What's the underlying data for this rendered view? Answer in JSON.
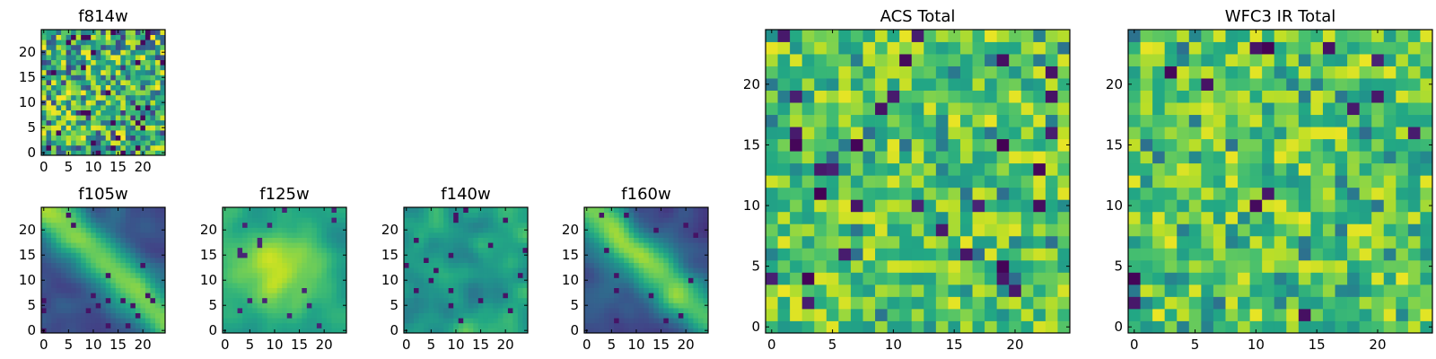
{
  "chart_data": [
    {
      "id": "f814w",
      "type": "heatmap",
      "title": "f814w",
      "grid_size": 25,
      "xticks": [
        0,
        5,
        10,
        15,
        20
      ],
      "yticks": [
        0,
        5,
        10,
        15,
        20
      ],
      "xlim": [
        -0.5,
        24.5
      ],
      "ylim": [
        -0.5,
        24.5
      ],
      "colormap": "viridis",
      "pattern": "noise",
      "seed": 11
    },
    {
      "id": "f105w",
      "type": "heatmap",
      "title": "f105w",
      "grid_size": 25,
      "xticks": [
        0,
        5,
        10,
        15,
        20
      ],
      "yticks": [
        0,
        5,
        10,
        15,
        20
      ],
      "xlim": [
        -0.5,
        24.5
      ],
      "ylim": [
        -0.5,
        24.5
      ],
      "colormap": "viridis",
      "pattern": "diagonal-band",
      "seed": 23
    },
    {
      "id": "f125w",
      "type": "heatmap",
      "title": "f125w",
      "grid_size": 25,
      "xticks": [
        0,
        5,
        10,
        15,
        20
      ],
      "yticks": [
        0,
        5,
        10,
        15,
        20
      ],
      "xlim": [
        -0.5,
        24.5
      ],
      "ylim": [
        -0.5,
        24.5
      ],
      "colormap": "viridis",
      "pattern": "bright-center",
      "seed": 37
    },
    {
      "id": "f140w",
      "type": "heatmap",
      "title": "f140w",
      "grid_size": 25,
      "xticks": [
        0,
        5,
        10,
        15,
        20
      ],
      "yticks": [
        0,
        5,
        10,
        15,
        20
      ],
      "xlim": [
        -0.5,
        24.5
      ],
      "ylim": [
        -0.5,
        24.5
      ],
      "colormap": "viridis",
      "pattern": "smooth",
      "seed": 41
    },
    {
      "id": "f160w",
      "type": "heatmap",
      "title": "f160w",
      "grid_size": 25,
      "xticks": [
        0,
        5,
        10,
        15,
        20
      ],
      "yticks": [
        0,
        5,
        10,
        15,
        20
      ],
      "xlim": [
        -0.5,
        24.5
      ],
      "ylim": [
        -0.5,
        24.5
      ],
      "colormap": "viridis",
      "pattern": "diagonal-band",
      "seed": 53
    },
    {
      "id": "acs_total",
      "type": "heatmap",
      "title": "ACS Total",
      "grid_size": 25,
      "xticks": [
        0,
        5,
        10,
        15,
        20
      ],
      "yticks": [
        0,
        5,
        10,
        15,
        20
      ],
      "xlim": [
        -0.5,
        24.5
      ],
      "ylim": [
        -0.5,
        24.5
      ],
      "colormap": "viridis",
      "pattern": "noise-bright",
      "seed": 67
    },
    {
      "id": "wfc3_ir_total",
      "type": "heatmap",
      "title": "WFC3 IR Total",
      "grid_size": 25,
      "xticks": [
        0,
        5,
        10,
        15,
        20
      ],
      "yticks": [
        0,
        5,
        10,
        15,
        20
      ],
      "xlim": [
        -0.5,
        24.5
      ],
      "ylim": [
        -0.5,
        24.5
      ],
      "colormap": "viridis",
      "pattern": "noise-bright",
      "seed": 79
    }
  ],
  "colors": {
    "axis": "#000000",
    "background": "#ffffff"
  }
}
